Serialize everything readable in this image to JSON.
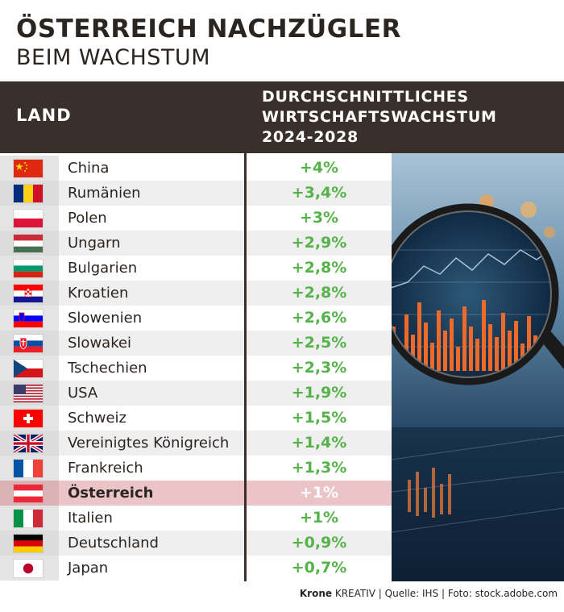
{
  "title": "ÖSTERREICH NACHZÜGLER",
  "subtitle": "BEIM WACHSTUM",
  "header": {
    "col1": "LAND",
    "col2_lines": [
      "DURCHSCHNITTLICHES",
      "WIRTSCHAFTSWACHSTUM",
      "2024-2028"
    ]
  },
  "credit": {
    "brand": "Krone",
    "text": " KREATIV | Quelle: IHS | Foto: stock.adobe.com"
  },
  "colors": {
    "header_bg": "#3a302b",
    "value_green": "#55b34a",
    "highlight_row": "#eac4c6"
  },
  "chart_data": {
    "type": "table",
    "title": "ÖSTERREICH NACHZÜGLER BEIM WACHSTUM",
    "columns": [
      "LAND",
      "DURCHSCHNITTLICHES WIRTSCHAFTSWACHSTUM 2024-2028"
    ],
    "rows": [
      {
        "country": "China",
        "label": "+4%",
        "value": 4.0,
        "flag": "china-flag-icon"
      },
      {
        "country": "Rumänien",
        "label": "+3,4%",
        "value": 3.4,
        "flag": "romania-flag-icon"
      },
      {
        "country": "Polen",
        "label": "+3%",
        "value": 3.0,
        "flag": "poland-flag-icon"
      },
      {
        "country": "Ungarn",
        "label": "+2,9%",
        "value": 2.9,
        "flag": "hungary-flag-icon"
      },
      {
        "country": "Bulgarien",
        "label": "+2,8%",
        "value": 2.8,
        "flag": "bulgaria-flag-icon"
      },
      {
        "country": "Kroatien",
        "label": "+2,8%",
        "value": 2.8,
        "flag": "croatia-flag-icon"
      },
      {
        "country": "Slowenien",
        "label": "+2,6%",
        "value": 2.6,
        "flag": "slovenia-flag-icon"
      },
      {
        "country": "Slowakei",
        "label": "+2,5%",
        "value": 2.5,
        "flag": "slovakia-flag-icon"
      },
      {
        "country": "Tschechien",
        "label": "+2,3%",
        "value": 2.3,
        "flag": "czechia-flag-icon"
      },
      {
        "country": "USA",
        "label": "+1,9%",
        "value": 1.9,
        "flag": "usa-flag-icon"
      },
      {
        "country": "Schweiz",
        "label": "+1,5%",
        "value": 1.5,
        "flag": "switzerland-flag-icon"
      },
      {
        "country": "Vereinigtes Königreich",
        "label": "+1,4%",
        "value": 1.4,
        "flag": "uk-flag-icon"
      },
      {
        "country": "Frankreich",
        "label": "+1,3%",
        "value": 1.3,
        "flag": "france-flag-icon"
      },
      {
        "country": "Österreich",
        "label": "+1%",
        "value": 1.0,
        "flag": "austria-flag-icon",
        "highlight": true
      },
      {
        "country": "Italien",
        "label": "+1%",
        "value": 1.0,
        "flag": "italy-flag-icon"
      },
      {
        "country": "Deutschland",
        "label": "+0,9%",
        "value": 0.9,
        "flag": "germany-flag-icon"
      },
      {
        "country": "Japan",
        "label": "+0,7%",
        "value": 0.7,
        "flag": "japan-flag-icon"
      }
    ]
  }
}
